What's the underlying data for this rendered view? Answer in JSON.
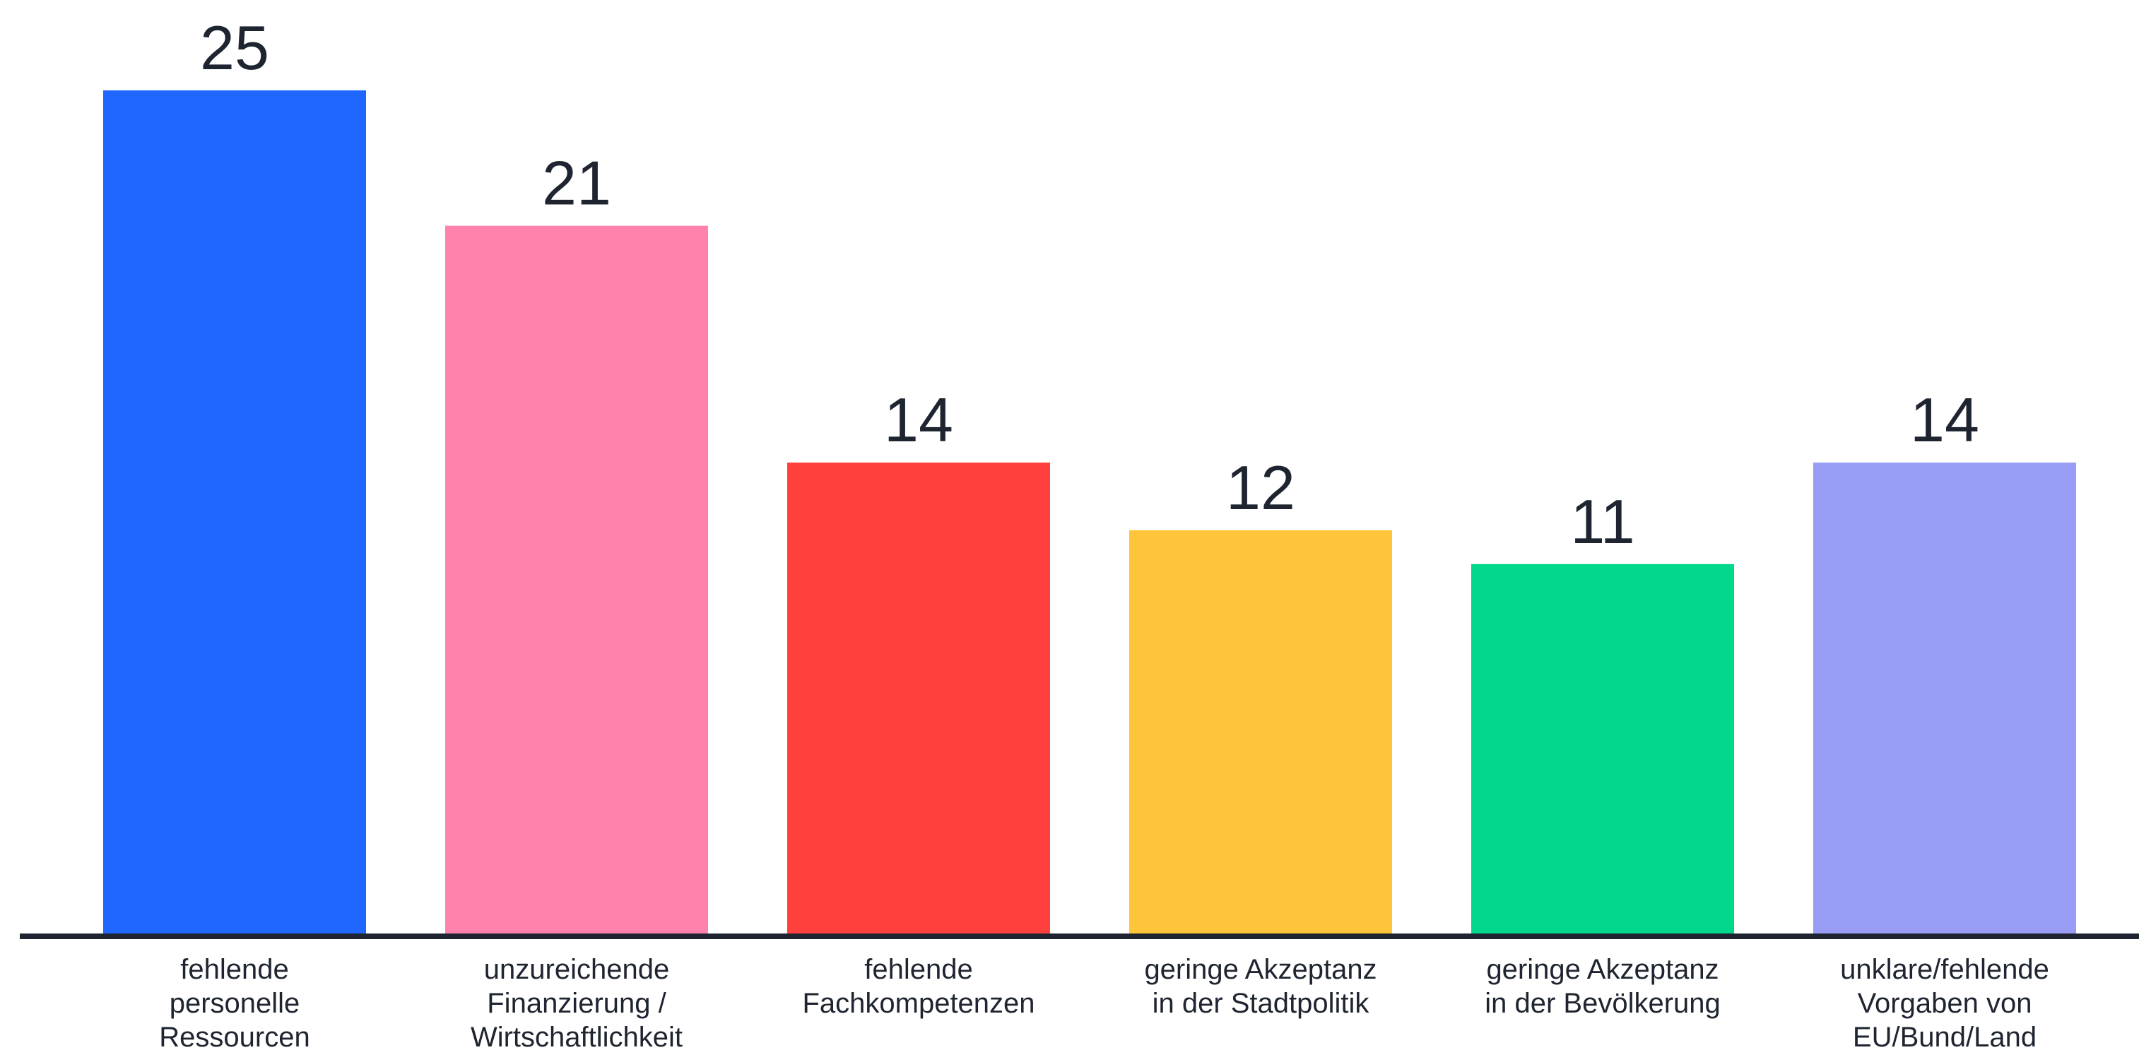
{
  "chart_data": {
    "type": "bar",
    "categories": [
      [
        "fehlende",
        "personelle",
        "Ressourcen"
      ],
      [
        "unzureichende",
        "Finanzierung /",
        "Wirtschaftlichkeit"
      ],
      [
        "fehlende",
        "Fachkompetenzen"
      ],
      [
        "geringe Akzeptanz",
        "in der Stadtpolitik"
      ],
      [
        "geringe Akzeptanz",
        "in der Bevölkerung"
      ],
      [
        "unklare/fehlende",
        "Vorgaben von",
        "EU/Bund/Land"
      ]
    ],
    "values": [
      25,
      21,
      14,
      12,
      11,
      14
    ],
    "value_labels": [
      "25",
      "21",
      "14",
      "12",
      "11",
      "14"
    ],
    "colors": [
      "#1f67ff",
      "#ff82ac",
      "#ff403d",
      "#ffc53a",
      "#02d88c",
      "#989cf5"
    ],
    "axis_color": "#1f2530",
    "ylim": [
      0,
      25
    ],
    "grid": false,
    "legend": "none",
    "title": "",
    "xlabel": "",
    "ylabel": ""
  }
}
